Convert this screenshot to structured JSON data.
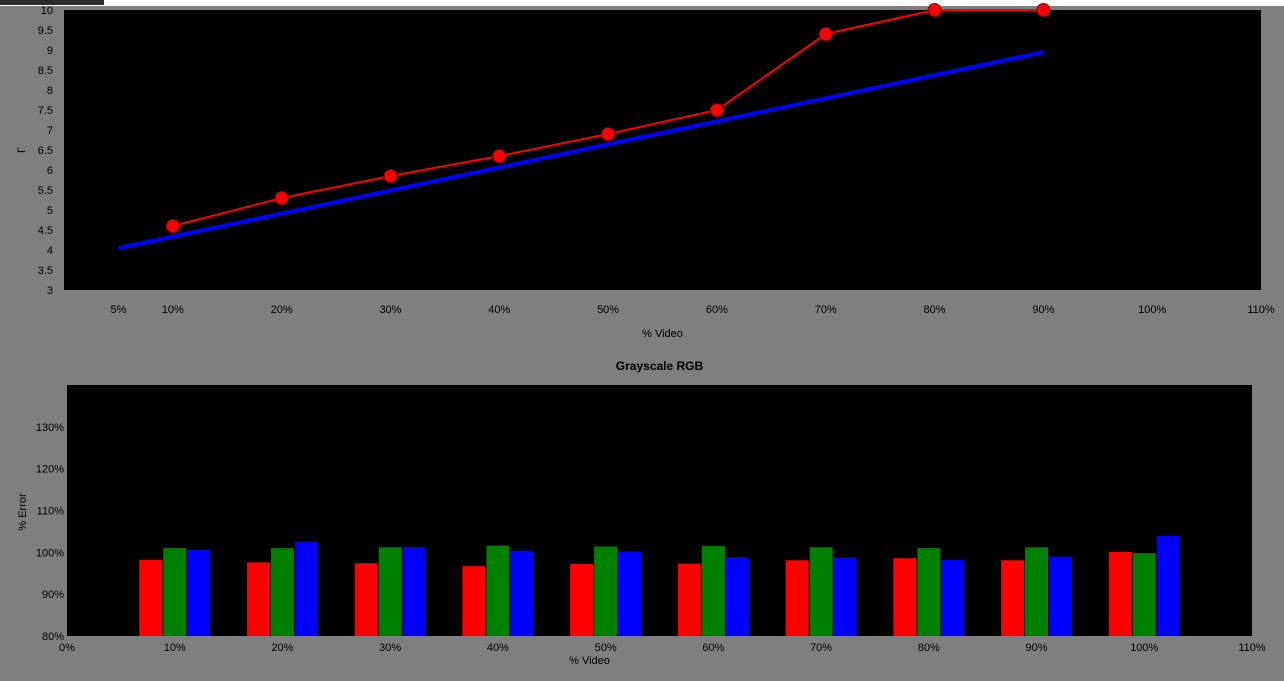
{
  "chart_data": [
    {
      "type": "line",
      "title": "",
      "xlabel": "% Video",
      "ylabel": "Γ",
      "x_unit": "%",
      "xlim": [
        0,
        110
      ],
      "ylim": [
        3,
        10
      ],
      "x_ticks": [
        5,
        10,
        20,
        30,
        40,
        50,
        60,
        70,
        80,
        90,
        100,
        110
      ],
      "x_tick_labels": [
        "5%",
        "10%",
        "20%",
        "30%",
        "40%",
        "50%",
        "60%",
        "70%",
        "80%",
        "90%",
        "100%",
        "110%"
      ],
      "y_ticks": [
        3,
        3.5,
        4,
        4.5,
        5,
        5.5,
        6,
        6.5,
        7,
        7.5,
        8,
        8.5,
        9,
        9.5,
        10
      ],
      "y_tick_labels": [
        "3",
        "3.5",
        "4",
        "4.5",
        "5",
        "5.5",
        "6",
        "6.5",
        "7",
        "7.5",
        "8",
        "8.5",
        "9",
        "9.5",
        "10"
      ],
      "grid": false,
      "background": "#000000",
      "series": [
        {
          "color": "#0000ff",
          "markers": false,
          "x": [
            5,
            90
          ],
          "y": [
            4.05,
            8.95
          ]
        },
        {
          "color": "#ff0000",
          "markers": true,
          "x": [
            10,
            20,
            30,
            40,
            50,
            60,
            70,
            80,
            90
          ],
          "y": [
            4.6,
            5.3,
            5.85,
            6.35,
            6.9,
            7.5,
            9.4,
            10.0,
            10.0
          ]
        }
      ]
    },
    {
      "type": "bar",
      "title": "Grayscale RGB",
      "xlabel": "% Video",
      "ylabel": "% Error",
      "xlim": [
        0,
        110
      ],
      "ylim": [
        80,
        140
      ],
      "x_tick_labels": [
        "0%",
        "10%",
        "20%",
        "30%",
        "40%",
        "50%",
        "60%",
        "70%",
        "80%",
        "90%",
        "100%",
        "110%"
      ],
      "y_ticks": [
        80,
        90,
        100,
        110,
        120,
        130
      ],
      "y_tick_labels": [
        "80%",
        "90%",
        "100%",
        "110%",
        "120%",
        "130%"
      ],
      "grid": false,
      "background": "#000000",
      "categories": [
        10,
        20,
        30,
        40,
        50,
        60,
        70,
        80,
        90,
        100
      ],
      "series": [
        {
          "color": "#ff0000",
          "values": [
            98.2,
            97.6,
            97.4,
            96.7,
            97.2,
            97.3,
            98.1,
            98.6,
            98.1,
            100.1
          ]
        },
        {
          "color": "#008000",
          "values": [
            101.0,
            101.0,
            101.2,
            101.6,
            101.4,
            101.5,
            101.2,
            101.0,
            101.2,
            99.8
          ]
        },
        {
          "color": "#0000ff",
          "values": [
            100.7,
            102.6,
            101.3,
            100.4,
            100.2,
            98.9,
            98.8,
            98.2,
            99.0,
            103.9
          ]
        }
      ]
    }
  ]
}
